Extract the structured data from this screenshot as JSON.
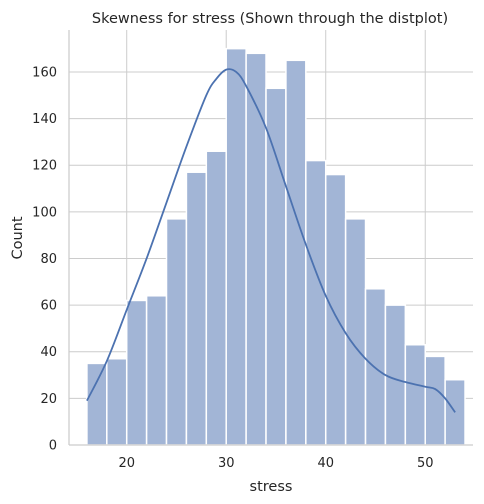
{
  "chart_data": {
    "type": "bar",
    "title": "Skewness for stress (Shown through the distplot)",
    "xlabel": "stress",
    "ylabel": "Count",
    "xlim": [
      14.2,
      54.8
    ],
    "ylim": [
      0,
      178
    ],
    "xticks": [
      20,
      30,
      40,
      50
    ],
    "yticks": [
      0,
      20,
      40,
      60,
      80,
      100,
      120,
      140,
      160
    ],
    "grid": true,
    "bar_color": "#a2b5d6",
    "line_color": "#4c72b0",
    "bins": [
      {
        "x0": 16.0,
        "x1": 18.0,
        "count": 35
      },
      {
        "x0": 18.0,
        "x1": 20.0,
        "count": 37
      },
      {
        "x0": 20.0,
        "x1": 22.0,
        "count": 62
      },
      {
        "x0": 22.0,
        "x1": 24.0,
        "count": 64
      },
      {
        "x0": 24.0,
        "x1": 26.0,
        "count": 97
      },
      {
        "x0": 26.0,
        "x1": 28.0,
        "count": 117
      },
      {
        "x0": 28.0,
        "x1": 30.0,
        "count": 126
      },
      {
        "x0": 30.0,
        "x1": 32.0,
        "count": 170
      },
      {
        "x0": 32.0,
        "x1": 34.0,
        "count": 168
      },
      {
        "x0": 34.0,
        "x1": 36.0,
        "count": 153
      },
      {
        "x0": 36.0,
        "x1": 38.0,
        "count": 165
      },
      {
        "x0": 38.0,
        "x1": 40.0,
        "count": 122
      },
      {
        "x0": 40.0,
        "x1": 42.0,
        "count": 116
      },
      {
        "x0": 42.0,
        "x1": 44.0,
        "count": 97
      },
      {
        "x0": 44.0,
        "x1": 46.0,
        "count": 67
      },
      {
        "x0": 46.0,
        "x1": 48.0,
        "count": 60
      },
      {
        "x0": 48.0,
        "x1": 50.0,
        "count": 43
      },
      {
        "x0": 50.0,
        "x1": 52.0,
        "count": 38
      },
      {
        "x0": 52.0,
        "x1": 54.0,
        "count": 28
      }
    ],
    "kde": {
      "x": [
        16,
        18,
        20,
        22,
        24,
        26,
        28,
        29,
        30,
        31,
        32,
        34,
        36,
        38,
        40,
        42,
        44,
        46,
        48,
        50,
        51,
        52,
        53
      ],
      "y": [
        19,
        36,
        58,
        80,
        104,
        128,
        150,
        157,
        161,
        160,
        154,
        136,
        111,
        86,
        64,
        48,
        37,
        30,
        27,
        25,
        24,
        20,
        14
      ]
    }
  }
}
